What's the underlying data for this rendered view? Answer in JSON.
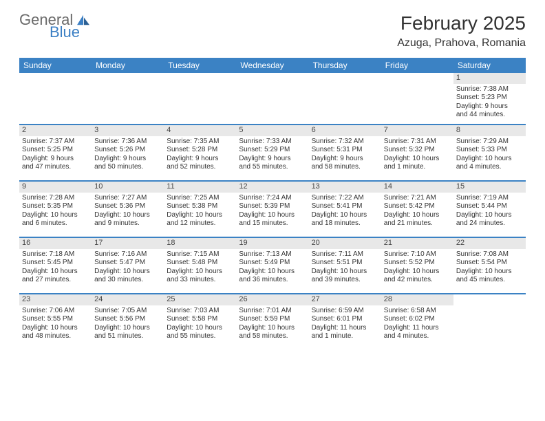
{
  "brand": {
    "general": "General",
    "blue": "Blue"
  },
  "title": "February 2025",
  "location": "Azuga, Prahova, Romania",
  "colors": {
    "header_bg": "#3b82c4",
    "header_text": "#ffffff",
    "daynum_bg": "#e8e8e8",
    "text": "#333333",
    "brand_gray": "#6a6a6a",
    "brand_blue": "#3b7fc4",
    "divider": "#3b82c4"
  },
  "dayNames": [
    "Sunday",
    "Monday",
    "Tuesday",
    "Wednesday",
    "Thursday",
    "Friday",
    "Saturday"
  ],
  "weeks": [
    [
      null,
      null,
      null,
      null,
      null,
      null,
      {
        "n": "1",
        "sr": "Sunrise: 7:38 AM",
        "ss": "Sunset: 5:23 PM",
        "d1": "Daylight: 9 hours",
        "d2": "and 44 minutes."
      }
    ],
    [
      {
        "n": "2",
        "sr": "Sunrise: 7:37 AM",
        "ss": "Sunset: 5:25 PM",
        "d1": "Daylight: 9 hours",
        "d2": "and 47 minutes."
      },
      {
        "n": "3",
        "sr": "Sunrise: 7:36 AM",
        "ss": "Sunset: 5:26 PM",
        "d1": "Daylight: 9 hours",
        "d2": "and 50 minutes."
      },
      {
        "n": "4",
        "sr": "Sunrise: 7:35 AM",
        "ss": "Sunset: 5:28 PM",
        "d1": "Daylight: 9 hours",
        "d2": "and 52 minutes."
      },
      {
        "n": "5",
        "sr": "Sunrise: 7:33 AM",
        "ss": "Sunset: 5:29 PM",
        "d1": "Daylight: 9 hours",
        "d2": "and 55 minutes."
      },
      {
        "n": "6",
        "sr": "Sunrise: 7:32 AM",
        "ss": "Sunset: 5:31 PM",
        "d1": "Daylight: 9 hours",
        "d2": "and 58 minutes."
      },
      {
        "n": "7",
        "sr": "Sunrise: 7:31 AM",
        "ss": "Sunset: 5:32 PM",
        "d1": "Daylight: 10 hours",
        "d2": "and 1 minute."
      },
      {
        "n": "8",
        "sr": "Sunrise: 7:29 AM",
        "ss": "Sunset: 5:33 PM",
        "d1": "Daylight: 10 hours",
        "d2": "and 4 minutes."
      }
    ],
    [
      {
        "n": "9",
        "sr": "Sunrise: 7:28 AM",
        "ss": "Sunset: 5:35 PM",
        "d1": "Daylight: 10 hours",
        "d2": "and 6 minutes."
      },
      {
        "n": "10",
        "sr": "Sunrise: 7:27 AM",
        "ss": "Sunset: 5:36 PM",
        "d1": "Daylight: 10 hours",
        "d2": "and 9 minutes."
      },
      {
        "n": "11",
        "sr": "Sunrise: 7:25 AM",
        "ss": "Sunset: 5:38 PM",
        "d1": "Daylight: 10 hours",
        "d2": "and 12 minutes."
      },
      {
        "n": "12",
        "sr": "Sunrise: 7:24 AM",
        "ss": "Sunset: 5:39 PM",
        "d1": "Daylight: 10 hours",
        "d2": "and 15 minutes."
      },
      {
        "n": "13",
        "sr": "Sunrise: 7:22 AM",
        "ss": "Sunset: 5:41 PM",
        "d1": "Daylight: 10 hours",
        "d2": "and 18 minutes."
      },
      {
        "n": "14",
        "sr": "Sunrise: 7:21 AM",
        "ss": "Sunset: 5:42 PM",
        "d1": "Daylight: 10 hours",
        "d2": "and 21 minutes."
      },
      {
        "n": "15",
        "sr": "Sunrise: 7:19 AM",
        "ss": "Sunset: 5:44 PM",
        "d1": "Daylight: 10 hours",
        "d2": "and 24 minutes."
      }
    ],
    [
      {
        "n": "16",
        "sr": "Sunrise: 7:18 AM",
        "ss": "Sunset: 5:45 PM",
        "d1": "Daylight: 10 hours",
        "d2": "and 27 minutes."
      },
      {
        "n": "17",
        "sr": "Sunrise: 7:16 AM",
        "ss": "Sunset: 5:47 PM",
        "d1": "Daylight: 10 hours",
        "d2": "and 30 minutes."
      },
      {
        "n": "18",
        "sr": "Sunrise: 7:15 AM",
        "ss": "Sunset: 5:48 PM",
        "d1": "Daylight: 10 hours",
        "d2": "and 33 minutes."
      },
      {
        "n": "19",
        "sr": "Sunrise: 7:13 AM",
        "ss": "Sunset: 5:49 PM",
        "d1": "Daylight: 10 hours",
        "d2": "and 36 minutes."
      },
      {
        "n": "20",
        "sr": "Sunrise: 7:11 AM",
        "ss": "Sunset: 5:51 PM",
        "d1": "Daylight: 10 hours",
        "d2": "and 39 minutes."
      },
      {
        "n": "21",
        "sr": "Sunrise: 7:10 AM",
        "ss": "Sunset: 5:52 PM",
        "d1": "Daylight: 10 hours",
        "d2": "and 42 minutes."
      },
      {
        "n": "22",
        "sr": "Sunrise: 7:08 AM",
        "ss": "Sunset: 5:54 PM",
        "d1": "Daylight: 10 hours",
        "d2": "and 45 minutes."
      }
    ],
    [
      {
        "n": "23",
        "sr": "Sunrise: 7:06 AM",
        "ss": "Sunset: 5:55 PM",
        "d1": "Daylight: 10 hours",
        "d2": "and 48 minutes."
      },
      {
        "n": "24",
        "sr": "Sunrise: 7:05 AM",
        "ss": "Sunset: 5:56 PM",
        "d1": "Daylight: 10 hours",
        "d2": "and 51 minutes."
      },
      {
        "n": "25",
        "sr": "Sunrise: 7:03 AM",
        "ss": "Sunset: 5:58 PM",
        "d1": "Daylight: 10 hours",
        "d2": "and 55 minutes."
      },
      {
        "n": "26",
        "sr": "Sunrise: 7:01 AM",
        "ss": "Sunset: 5:59 PM",
        "d1": "Daylight: 10 hours",
        "d2": "and 58 minutes."
      },
      {
        "n": "27",
        "sr": "Sunrise: 6:59 AM",
        "ss": "Sunset: 6:01 PM",
        "d1": "Daylight: 11 hours",
        "d2": "and 1 minute."
      },
      {
        "n": "28",
        "sr": "Sunrise: 6:58 AM",
        "ss": "Sunset: 6:02 PM",
        "d1": "Daylight: 11 hours",
        "d2": "and 4 minutes."
      },
      null
    ]
  ]
}
